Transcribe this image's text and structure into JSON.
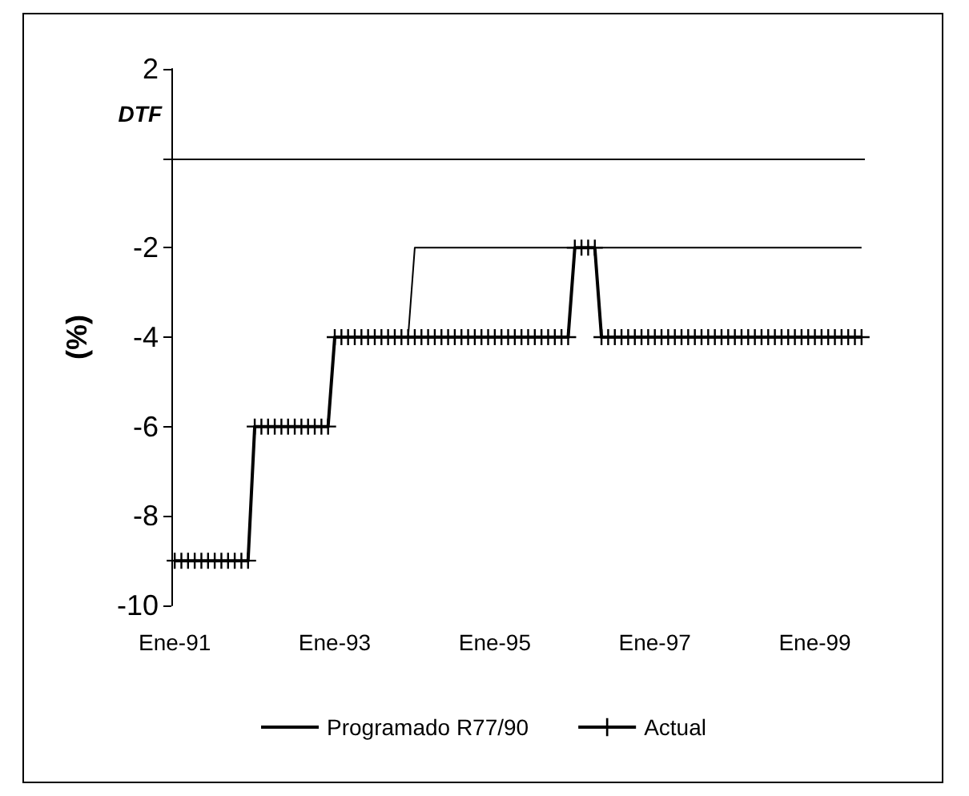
{
  "chart_data": {
    "type": "line",
    "ylabel": "(%)",
    "categories": [
      "Ene-91",
      null,
      null,
      null,
      null,
      null,
      null,
      null,
      null,
      null,
      null,
      null,
      null,
      null,
      null,
      null,
      null,
      null,
      null,
      null,
      null,
      null,
      null,
      null,
      "Ene-93",
      null,
      null,
      null,
      null,
      null,
      null,
      null,
      null,
      null,
      null,
      null,
      null,
      null,
      null,
      null,
      null,
      null,
      null,
      null,
      null,
      null,
      null,
      null,
      "Ene-95",
      null,
      null,
      null,
      null,
      null,
      null,
      null,
      null,
      null,
      null,
      null,
      null,
      null,
      null,
      null,
      null,
      null,
      null,
      null,
      null,
      null,
      null,
      null,
      "Ene-97",
      null,
      null,
      null,
      null,
      null,
      null,
      null,
      null,
      null,
      null,
      null,
      null,
      null,
      null,
      null,
      null,
      null,
      null,
      null,
      null,
      null,
      null,
      null,
      "Ene-99",
      null,
      null,
      null,
      null,
      null,
      null,
      null
    ],
    "series": [
      {
        "name": "Programado R77/90",
        "color": "#000000",
        "marker": "none",
        "values": [
          -9,
          -9,
          -9,
          -9,
          -9,
          -9,
          -9,
          -9,
          -9,
          -9,
          -9,
          -9,
          -6,
          -6,
          -6,
          -6,
          -6,
          -6,
          -6,
          -6,
          -6,
          -6,
          -6,
          -6,
          -4,
          -4,
          -4,
          -4,
          -4,
          -4,
          -4,
          -4,
          -4,
          -4,
          -4,
          -4,
          -2,
          -2,
          -2,
          -2,
          -2,
          -2,
          -2,
          -2,
          -2,
          -2,
          -2,
          -2,
          -2,
          -2,
          -2,
          -2,
          -2,
          -2,
          -2,
          -2,
          -2,
          -2,
          -2,
          -2,
          -2,
          -2,
          -2,
          -2,
          -2,
          -2,
          -2,
          -2,
          -2,
          -2,
          -2,
          -2,
          -2,
          -2,
          -2,
          -2,
          -2,
          -2,
          -2,
          -2,
          -2,
          -2,
          -2,
          -2,
          -2,
          -2,
          -2,
          -2,
          -2,
          -2,
          -2,
          -2,
          -2,
          -2,
          -2,
          -2,
          -2,
          -2,
          -2,
          -2,
          -2,
          -2,
          -2,
          -2
        ]
      },
      {
        "name": "Actual",
        "color": "#000000",
        "marker": "cross",
        "values": [
          -9,
          -9,
          -9,
          -9,
          -9,
          -9,
          -9,
          -9,
          -9,
          -9,
          -9,
          -9,
          -6,
          -6,
          -6,
          -6,
          -6,
          -6,
          -6,
          -6,
          -6,
          -6,
          -6,
          -6,
          -4,
          -4,
          -4,
          -4,
          -4,
          -4,
          -4,
          -4,
          -4,
          -4,
          -4,
          -4,
          -4,
          -4,
          -4,
          -4,
          -4,
          -4,
          -4,
          -4,
          -4,
          -4,
          -4,
          -4,
          -4,
          -4,
          -4,
          -4,
          -4,
          -4,
          -4,
          -4,
          -4,
          -4,
          -4,
          -4,
          -2,
          -2,
          -2,
          -2,
          -4,
          -4,
          -4,
          -4,
          -4,
          -4,
          -4,
          -4,
          -4,
          -4,
          -4,
          -4,
          -4,
          -4,
          -4,
          -4,
          -4,
          -4,
          -4,
          -4,
          -4,
          -4,
          -4,
          -4,
          -4,
          -4,
          -4,
          -4,
          -4,
          -4,
          -4,
          -4,
          -4,
          -4,
          -4,
          -4,
          -4,
          -4,
          -4,
          -4
        ]
      }
    ],
    "ylim": [
      -10,
      2
    ],
    "yticks": [
      -10,
      -8,
      -6,
      -4,
      -2,
      {
        "value": 0,
        "label": null
      },
      2
    ],
    "ref_lines": [
      {
        "axis": "y",
        "value": 0,
        "label": "DTF",
        "color": "#000000",
        "line_style": "solid"
      }
    ],
    "grid": false,
    "legend": "bottom",
    "line_style": "solid"
  }
}
